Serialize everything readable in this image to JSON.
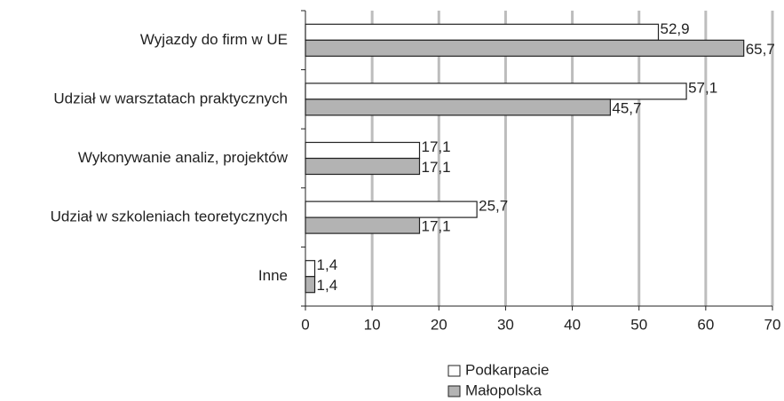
{
  "chart_data": {
    "type": "hbar",
    "categories": [
      "Wyjazdy do firm w UE",
      "Udział w warsztatach praktycznych",
      "Wykonywanie analiz, projektów",
      "Udział w szkoleniach teoretycznych",
      "Inne"
    ],
    "series": [
      {
        "name": "Podkarpacie",
        "color": "#ffffff",
        "values": [
          52.9,
          57.1,
          17.1,
          25.7,
          1.4
        ],
        "value_labels": [
          "52,9",
          "57,1",
          "17,1",
          "25,7",
          "1,4"
        ]
      },
      {
        "name": "Małopolska",
        "color": "#b3b3b3",
        "values": [
          65.7,
          45.7,
          17.1,
          17.1,
          1.4
        ],
        "value_labels": [
          "65,7",
          "45,7",
          "17,1",
          "17,1",
          "1,4"
        ]
      }
    ],
    "xlim": [
      0,
      70
    ],
    "xticks": [
      0,
      10,
      20,
      30,
      40,
      50,
      60,
      70
    ],
    "grid": true,
    "legend": "bottom"
  }
}
